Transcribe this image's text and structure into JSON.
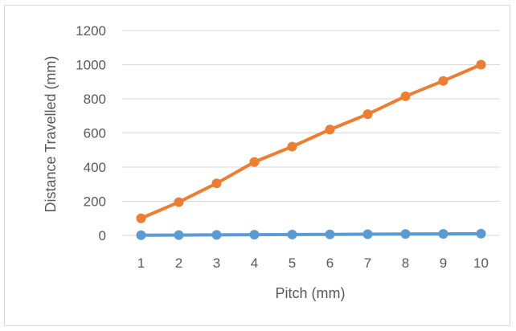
{
  "chart_data": {
    "type": "line",
    "title": "",
    "xlabel": "Pitch (mm)",
    "ylabel": "Distance Travelled (mm)",
    "x": [
      1,
      2,
      3,
      4,
      5,
      6,
      7,
      8,
      9,
      10
    ],
    "ylim": [
      0,
      1200
    ],
    "yticks": [
      0,
      200,
      400,
      600,
      800,
      1000,
      1200
    ],
    "grid": true,
    "legend": "none",
    "series": [
      {
        "color": "#5b9bd5",
        "values": [
          1,
          2,
          3,
          4,
          5,
          6,
          7,
          8,
          9,
          10
        ]
      },
      {
        "color": "#ed7d31",
        "values": [
          100,
          195,
          305,
          430,
          520,
          620,
          710,
          815,
          905,
          1000
        ]
      }
    ]
  }
}
